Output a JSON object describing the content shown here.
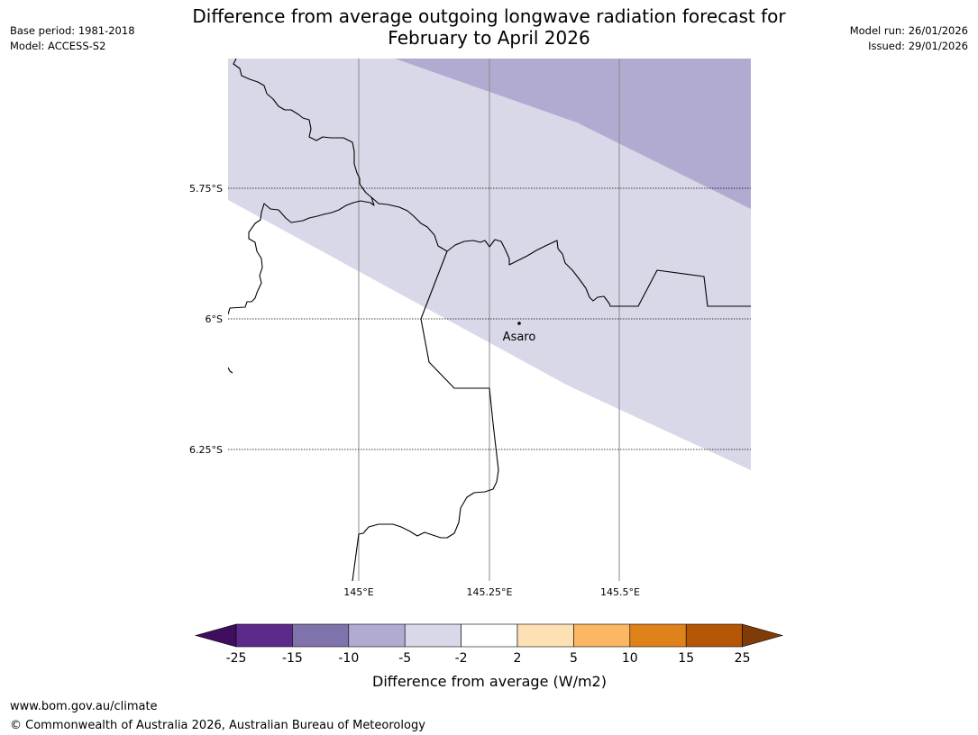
{
  "title": {
    "line1": "Difference from average outgoing longwave radiation forecast for",
    "line2": "February to April 2026"
  },
  "meta_left": {
    "base_period": "Base period: 1981-2018",
    "model": "Model: ACCESS-S2"
  },
  "meta_right": {
    "model_run": "Model run: 26/01/2026",
    "issued": "Issued: 29/01/2026"
  },
  "map": {
    "lat_labels": [
      "5.75°S",
      "6°S",
      "6.25°S"
    ],
    "lon_labels": [
      "145°E",
      "145.25°E",
      "145.5°E"
    ],
    "place": "Asaro",
    "region_colors": {
      "light_purple": "#d8d8e9",
      "mid_purple": "#b1abd2"
    }
  },
  "colorbar": {
    "label": "Difference from average (W/m2)",
    "ticks": [
      "-25",
      "-15",
      "-10",
      "-5",
      "-2",
      "2",
      "5",
      "10",
      "15",
      "25"
    ],
    "colors": [
      "#3f0e5c",
      "#5b2a8a",
      "#8073ac",
      "#b1abd2",
      "#d8d8e9",
      "#ffffff",
      "#fde0b4",
      "#fbb761",
      "#e0821a",
      "#b45606",
      "#7f3b08"
    ]
  },
  "footer": {
    "url": "www.bom.gov.au/climate",
    "copyright": "© Commonwealth of Australia 2026, Australian Bureau of Meteorology"
  }
}
